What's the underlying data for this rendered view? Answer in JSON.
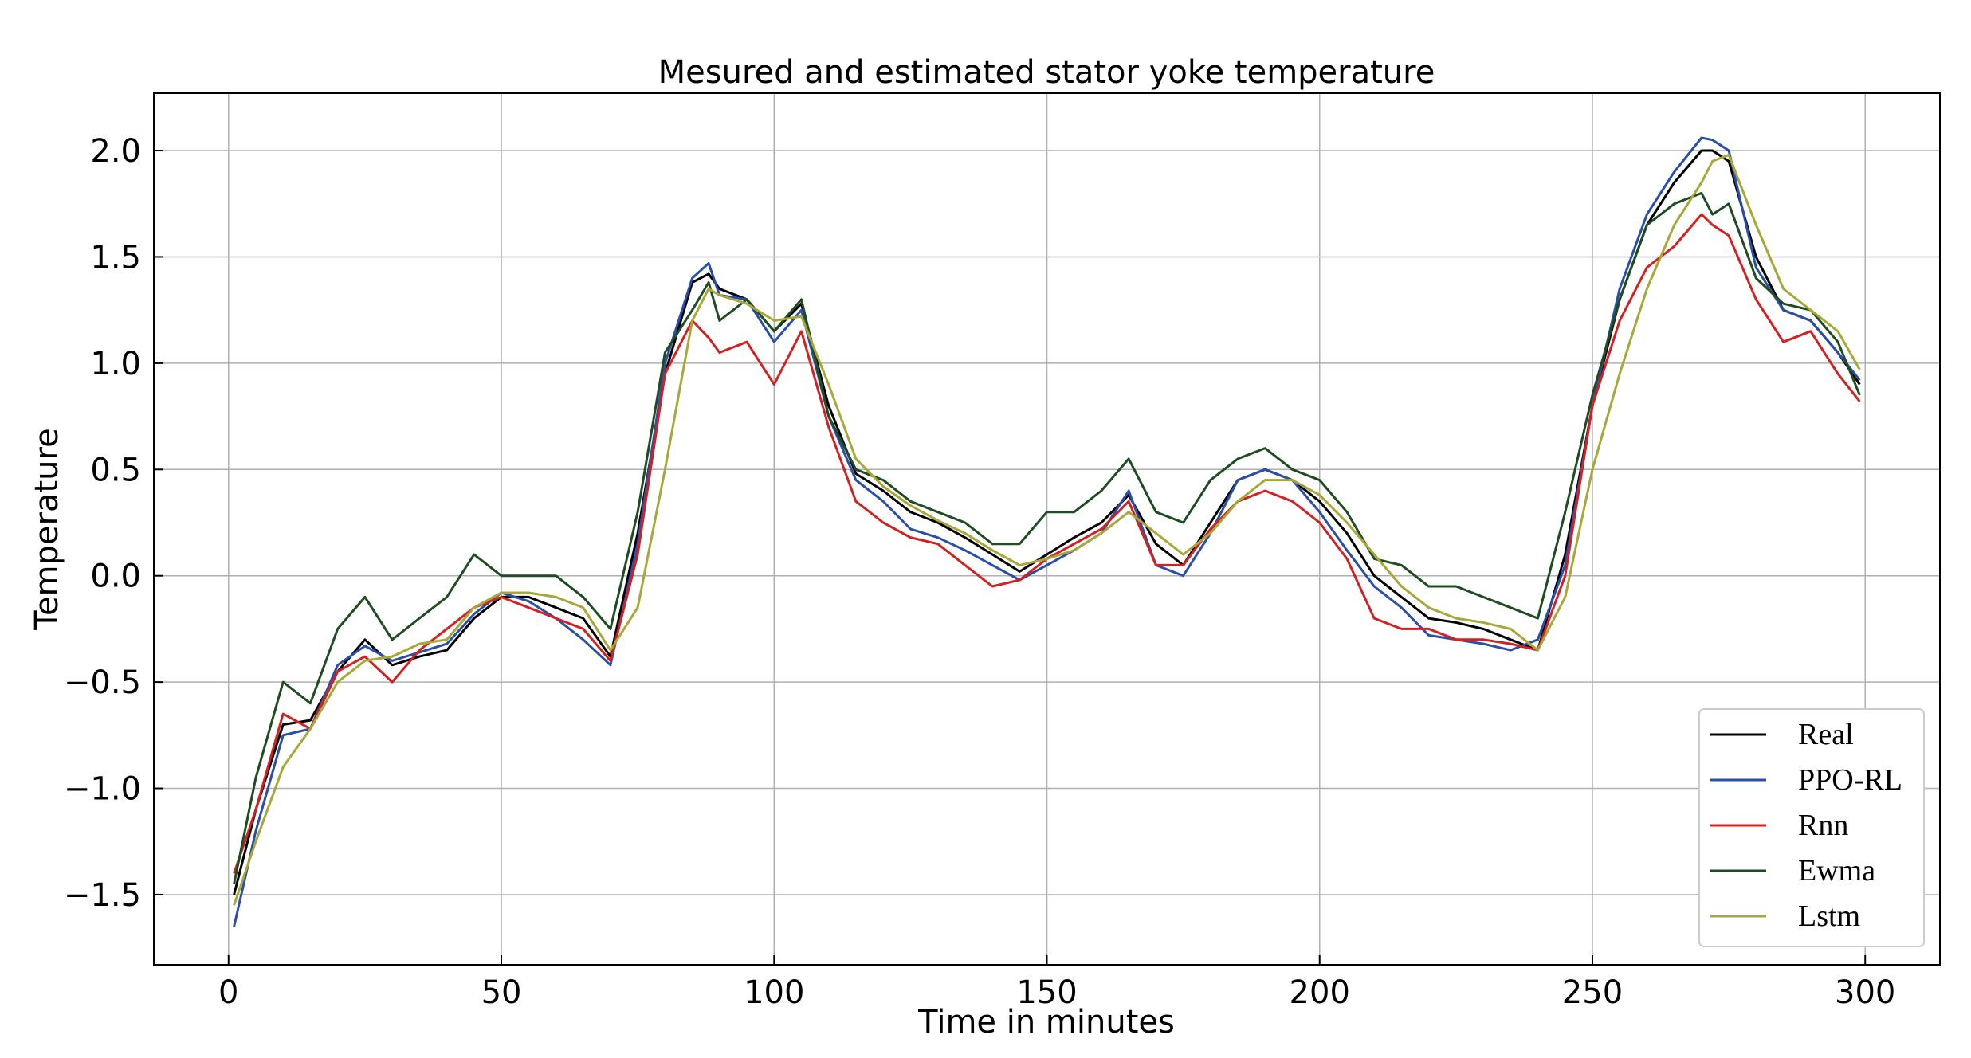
{
  "chart_data": {
    "type": "line",
    "title": "Mesured and estimated stator yoke temperature",
    "xlabel": "Time in minutes",
    "ylabel": "Temperature",
    "xlim": [
      -13.7,
      313.7
    ],
    "ylim": [
      -1.83,
      2.27
    ],
    "grid": true,
    "legend_position": "lower-right",
    "x_ticks": [
      0,
      50,
      100,
      150,
      200,
      250,
      300
    ],
    "x_tick_labels": [
      "0",
      "50",
      "100",
      "150",
      "200",
      "250",
      "300"
    ],
    "y_ticks": [
      -1.5,
      -1.0,
      -0.5,
      0.0,
      0.5,
      1.0,
      1.5,
      2.0
    ],
    "y_tick_labels": [
      "−1.5",
      "−1.0",
      "−0.5",
      "0.0",
      "0.5",
      "1.0",
      "1.5",
      "2.0"
    ],
    "x": [
      1,
      5,
      10,
      15,
      20,
      25,
      30,
      35,
      40,
      45,
      50,
      55,
      60,
      65,
      70,
      75,
      80,
      85,
      88,
      90,
      95,
      100,
      105,
      110,
      115,
      120,
      125,
      130,
      135,
      140,
      145,
      150,
      155,
      160,
      165,
      170,
      175,
      180,
      185,
      190,
      195,
      200,
      205,
      210,
      215,
      220,
      225,
      230,
      235,
      240,
      245,
      250,
      255,
      260,
      265,
      270,
      272,
      275,
      280,
      285,
      290,
      295,
      299
    ],
    "series": [
      {
        "name": "Real",
        "color": "#000000",
        "values": [
          -1.5,
          -1.1,
          -0.7,
          -0.68,
          -0.45,
          -0.3,
          -0.42,
          -0.38,
          -0.35,
          -0.2,
          -0.1,
          -0.1,
          -0.15,
          -0.2,
          -0.38,
          0.2,
          0.95,
          1.38,
          1.42,
          1.35,
          1.3,
          1.15,
          1.28,
          0.8,
          0.48,
          0.4,
          0.3,
          0.25,
          0.18,
          0.1,
          0.02,
          0.1,
          0.18,
          0.25,
          0.38,
          0.15,
          0.05,
          0.25,
          0.45,
          0.5,
          0.45,
          0.35,
          0.2,
          0.0,
          -0.1,
          -0.2,
          -0.22,
          -0.25,
          -0.3,
          -0.35,
          0.1,
          0.8,
          1.3,
          1.65,
          1.85,
          2.0,
          2.0,
          1.95,
          1.5,
          1.25,
          1.2,
          1.05,
          0.9
        ]
      },
      {
        "name": "PPO-RL",
        "color": "#2a4fa8",
        "values": [
          -1.65,
          -1.2,
          -0.75,
          -0.72,
          -0.42,
          -0.33,
          -0.4,
          -0.36,
          -0.32,
          -0.18,
          -0.08,
          -0.12,
          -0.2,
          -0.3,
          -0.42,
          0.15,
          1.0,
          1.4,
          1.47,
          1.32,
          1.3,
          1.1,
          1.25,
          0.75,
          0.45,
          0.35,
          0.22,
          0.18,
          0.12,
          0.05,
          -0.02,
          0.05,
          0.12,
          0.2,
          0.4,
          0.05,
          0.0,
          0.2,
          0.45,
          0.5,
          0.45,
          0.3,
          0.12,
          -0.05,
          -0.15,
          -0.28,
          -0.3,
          -0.32,
          -0.35,
          -0.3,
          0.05,
          0.8,
          1.35,
          1.7,
          1.9,
          2.06,
          2.05,
          2.0,
          1.45,
          1.25,
          1.2,
          1.05,
          0.92
        ]
      },
      {
        "name": "Rnn",
        "color": "#d42020",
        "values": [
          -1.4,
          -1.1,
          -0.65,
          -0.72,
          -0.45,
          -0.38,
          -0.5,
          -0.35,
          -0.25,
          -0.15,
          -0.1,
          -0.15,
          -0.2,
          -0.25,
          -0.4,
          0.1,
          0.95,
          1.2,
          1.12,
          1.05,
          1.1,
          0.9,
          1.15,
          0.7,
          0.35,
          0.25,
          0.18,
          0.15,
          0.05,
          -0.05,
          -0.02,
          0.08,
          0.15,
          0.22,
          0.35,
          0.05,
          0.05,
          0.22,
          0.35,
          0.4,
          0.35,
          0.25,
          0.08,
          -0.2,
          -0.25,
          -0.25,
          -0.3,
          -0.3,
          -0.32,
          -0.35,
          0.0,
          0.8,
          1.2,
          1.45,
          1.55,
          1.7,
          1.65,
          1.6,
          1.3,
          1.1,
          1.15,
          0.95,
          0.82
        ]
      },
      {
        "name": "Ewma",
        "color": "#1e4d22",
        "values": [
          -1.45,
          -0.95,
          -0.5,
          -0.6,
          -0.25,
          -0.1,
          -0.3,
          -0.2,
          -0.1,
          0.1,
          0.0,
          0.0,
          0.0,
          -0.1,
          -0.25,
          0.3,
          1.05,
          1.25,
          1.38,
          1.2,
          1.3,
          1.15,
          1.3,
          0.75,
          0.5,
          0.45,
          0.35,
          0.3,
          0.25,
          0.15,
          0.15,
          0.3,
          0.3,
          0.4,
          0.55,
          0.3,
          0.25,
          0.45,
          0.55,
          0.6,
          0.5,
          0.45,
          0.3,
          0.08,
          0.05,
          -0.05,
          -0.05,
          -0.1,
          -0.15,
          -0.2,
          0.3,
          0.85,
          1.3,
          1.65,
          1.75,
          1.8,
          1.7,
          1.75,
          1.4,
          1.28,
          1.25,
          1.1,
          0.85
        ]
      },
      {
        "name": "Lstm",
        "color": "#a8a838",
        "values": [
          -1.55,
          -1.25,
          -0.9,
          -0.72,
          -0.5,
          -0.4,
          -0.38,
          -0.32,
          -0.3,
          -0.15,
          -0.08,
          -0.08,
          -0.1,
          -0.15,
          -0.35,
          -0.15,
          0.5,
          1.2,
          1.35,
          1.32,
          1.28,
          1.2,
          1.22,
          0.9,
          0.55,
          0.42,
          0.33,
          0.26,
          0.2,
          0.12,
          0.05,
          0.08,
          0.12,
          0.2,
          0.3,
          0.2,
          0.1,
          0.2,
          0.35,
          0.45,
          0.45,
          0.38,
          0.25,
          0.1,
          -0.05,
          -0.15,
          -0.2,
          -0.22,
          -0.25,
          -0.35,
          -0.1,
          0.5,
          0.95,
          1.35,
          1.65,
          1.85,
          1.95,
          1.98,
          1.65,
          1.35,
          1.25,
          1.15,
          0.97
        ]
      }
    ]
  }
}
